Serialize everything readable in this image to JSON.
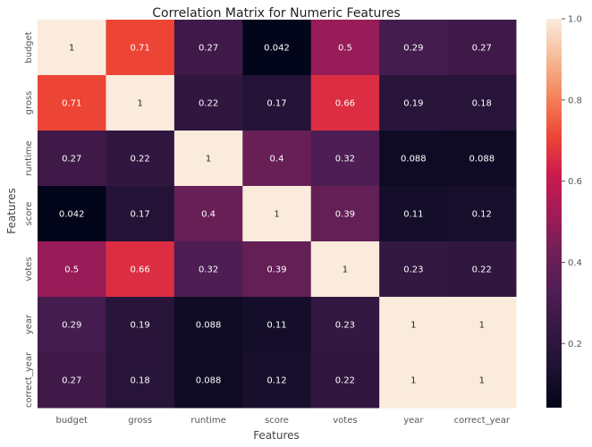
{
  "chart_data": {
    "type": "heatmap",
    "title": "Correlation Matrix for Numeric Features",
    "xlabel": "Features",
    "ylabel": "Features",
    "rows": [
      "budget",
      "gross",
      "runtime",
      "score",
      "votes",
      "year",
      "correct_year"
    ],
    "columns": [
      "budget",
      "gross",
      "runtime",
      "score",
      "votes",
      "year",
      "correct_year"
    ],
    "values": [
      [
        1,
        0.71,
        0.27,
        0.042,
        0.5,
        0.29,
        0.27
      ],
      [
        0.71,
        1,
        0.22,
        0.17,
        0.66,
        0.19,
        0.18
      ],
      [
        0.27,
        0.22,
        1,
        0.4,
        0.32,
        0.088,
        0.088
      ],
      [
        0.042,
        0.17,
        0.4,
        1,
        0.39,
        0.11,
        0.12
      ],
      [
        0.5,
        0.66,
        0.32,
        0.39,
        1,
        0.23,
        0.22
      ],
      [
        0.29,
        0.19,
        0.088,
        0.11,
        0.23,
        1,
        1
      ],
      [
        0.27,
        0.18,
        0.088,
        0.12,
        0.22,
        1,
        1
      ]
    ],
    "colorbar": {
      "min": 0.042,
      "max": 1.0,
      "ticks": [
        "0.2",
        "0.4",
        "0.6",
        "0.8",
        "1.0"
      ],
      "colormap": "rocket"
    }
  }
}
